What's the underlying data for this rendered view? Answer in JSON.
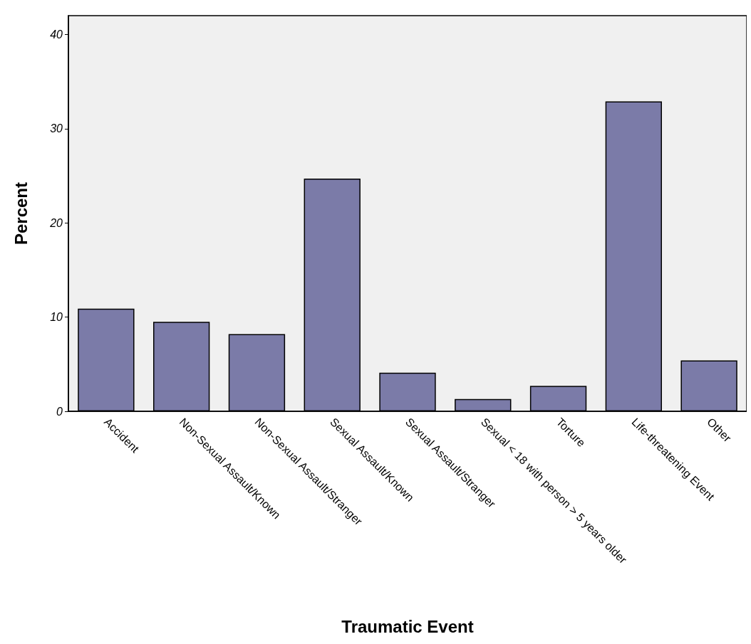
{
  "chart_data": {
    "type": "bar",
    "xlabel": "Traumatic Event",
    "ylabel": "Percent",
    "categories": [
      "Accident",
      "Non-Sexual Assault/Known",
      "Non-Sexual Assault/Stranger",
      "Sexual Assault/Known",
      "Sexual Assault/Stranger",
      "Sexual < 18 with person > 5 years older",
      "Torture",
      "Life-threatening Event",
      "Other"
    ],
    "values": [
      10.9,
      9.5,
      8.2,
      24.7,
      4.1,
      1.3,
      2.7,
      32.9,
      5.4
    ],
    "color": "#7b7ba8",
    "ylim": [
      0,
      42
    ],
    "yticks": [
      0,
      10,
      20,
      30,
      40
    ],
    "grid": false
  }
}
